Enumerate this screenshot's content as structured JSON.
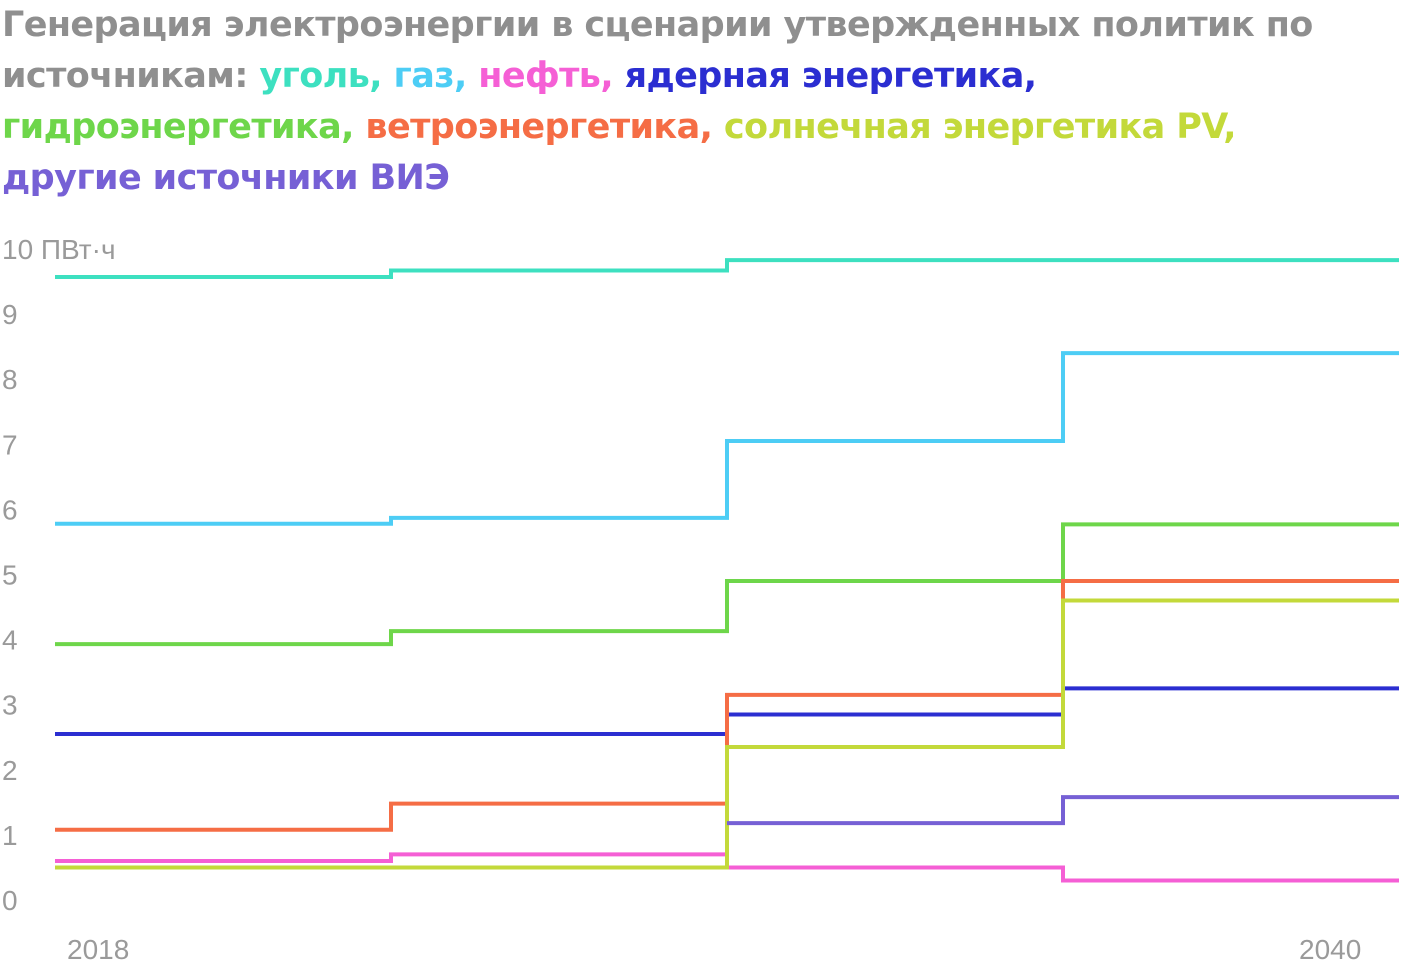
{
  "title": {
    "prefix": "Генерация электроэнергии в сценарии утвержденных политик по источникам: ",
    "color": "#8f8f8f"
  },
  "chart_data": {
    "type": "line",
    "step": true,
    "x_points": [
      2018,
      2024,
      2030,
      2036,
      2042
    ],
    "x_ticks": [
      {
        "value": 2018,
        "label": "2018"
      },
      {
        "value": 2040,
        "label": "2040"
      }
    ],
    "y_unit": "ПВт·ч",
    "ylim": [
      0,
      10
    ],
    "y_ticks": [
      0,
      1,
      2,
      3,
      4,
      5,
      6,
      7,
      8,
      9,
      10
    ],
    "grid": false,
    "legend": "in-title",
    "series": [
      {
        "name": "уголь",
        "color": "#3de0c0",
        "values": [
          9.57,
          9.67,
          9.83,
          9.83
        ]
      },
      {
        "name": "газ",
        "color": "#4dcdf5",
        "values": [
          5.78,
          5.87,
          7.05,
          8.4
        ]
      },
      {
        "name": "нефть",
        "color": "#f55fd5",
        "values": [
          0.6,
          0.7,
          0.5,
          0.3
        ]
      },
      {
        "name": "ядерная энергетика",
        "color": "#2b2ed1",
        "values": [
          2.55,
          2.55,
          2.85,
          3.25
        ]
      },
      {
        "name": "гидроэнергетика",
        "color": "#6ed64a",
        "values": [
          3.93,
          4.13,
          4.9,
          5.77
        ]
      },
      {
        "name": "ветроэнергетика",
        "color": "#f56d45",
        "values": [
          1.08,
          1.48,
          3.15,
          4.9
        ]
      },
      {
        "name": "солнечная энергетика PV",
        "color": "#c3d93a",
        "values": [
          0.5,
          0.5,
          2.35,
          4.6
        ]
      },
      {
        "name": "другие источники ВИЭ",
        "color": "#7660d5",
        "values": [
          null,
          null,
          1.18,
          1.58
        ]
      }
    ]
  }
}
